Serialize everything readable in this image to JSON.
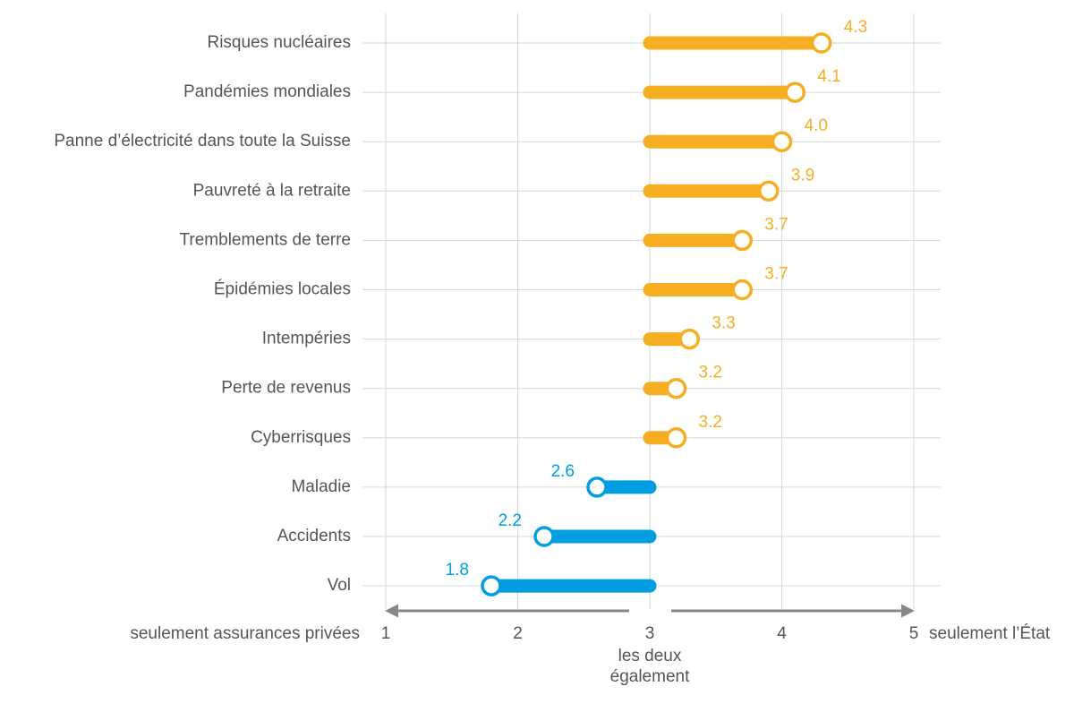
{
  "chart_data": {
    "type": "dumbbell",
    "categories": [
      "Risques nucléaires",
      "Pandémies mondiales",
      "Panne d’électricité dans toute la Suisse",
      "Pauvreté à la retraite",
      "Tremblements de terre",
      "Épidémies locales",
      "Intempéries",
      "Perte de revenus",
      "Cyberrisques",
      "Maladie",
      "Accidents",
      "Vol"
    ],
    "values": [
      4.3,
      4.1,
      4.0,
      3.9,
      3.7,
      3.7,
      3.3,
      3.2,
      3.2,
      2.6,
      2.2,
      1.8
    ],
    "value_labels": [
      "4.3",
      "4.1",
      "4.0",
      "3.9",
      "3.7",
      "3.7",
      "3.3",
      "3.2",
      "3.2",
      "2.6",
      "2.2",
      "1.8"
    ],
    "baseline": 3,
    "color_above": "#f5ae22",
    "color_below": "#009ee0",
    "xlim": [
      1,
      5
    ],
    "xticks": [
      1,
      2,
      3,
      4,
      5
    ],
    "grid": true,
    "x_left_label": "seulement assurances privées",
    "x_right_label": "seulement l’État",
    "x_center_label": [
      "les deux",
      "également"
    ]
  }
}
